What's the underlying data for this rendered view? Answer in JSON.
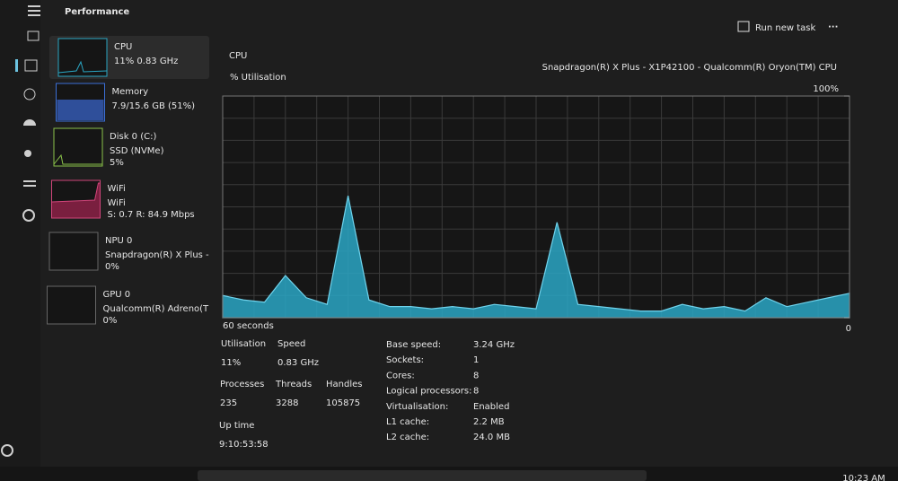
{
  "header": {
    "title": "Performance",
    "run_new_task": "Run new task"
  },
  "sidebar": [
    {
      "name": "CPU",
      "detail": "11%  0.83 GHz"
    },
    {
      "name": "Memory",
      "detail": "7.9/15.6 GB (51%)"
    },
    {
      "name": "Disk 0 (C:)",
      "detail": "SSD (NVMe)",
      "detail2": "5%"
    },
    {
      "name": "WiFi",
      "detail": "WiFi",
      "detail2": "S: 0.7  R: 84.9 Mbps"
    },
    {
      "name": "NPU 0",
      "detail": "Snapdragon(R) X Plus -",
      "detail2": "0%"
    },
    {
      "name": "GPU 0",
      "detail": "Qualcomm(R) Adreno(T",
      "detail2": "0%"
    }
  ],
  "main": {
    "title": "CPU",
    "processor": "Snapdragon(R) X Plus - X1P42100 - Qualcomm(R) Oryon(TM) CPU"
  },
  "chart_data": {
    "type": "area",
    "y_label": "% Utilisation",
    "x_label": "60 seconds",
    "color": "#2aa6c4",
    "values": [
      10,
      8,
      7,
      19,
      9,
      6,
      55,
      8,
      5,
      5,
      4,
      5,
      4,
      6,
      5,
      4,
      43,
      6,
      5,
      4,
      3,
      3,
      6,
      4,
      5,
      3,
      9,
      5,
      7,
      9,
      11
    ],
    "ylim": [
      0,
      100
    ],
    "yticks": [
      0,
      {
        "value": 100,
        "label": "100%"
      }
    ],
    "grid": true
  },
  "stats": [
    {
      "label": "Utilisation",
      "value": "11%"
    },
    {
      "label": "Speed",
      "value": "0.83 GHz"
    },
    {
      "label": "Processes",
      "value": "235"
    },
    {
      "label": "Threads",
      "value": "3288"
    },
    {
      "label": "Handles",
      "value": "105875"
    },
    {
      "label": "Up time",
      "value": "9:10:53:58"
    }
  ],
  "details": [
    {
      "label": "Base speed:",
      "value": "3.24 GHz"
    },
    {
      "label": "Sockets:",
      "value": "1"
    },
    {
      "label": "Cores:",
      "value": "8"
    },
    {
      "label": "Logical processors:",
      "value": "8"
    },
    {
      "label": "Virtualisation:",
      "value": "Enabled"
    },
    {
      "label": "L1 cache:",
      "value": "2.2 MB"
    },
    {
      "label": "L2 cache:",
      "value": "24.0 MB"
    }
  ],
  "taskbar": {
    "time": "10:23 AM"
  }
}
